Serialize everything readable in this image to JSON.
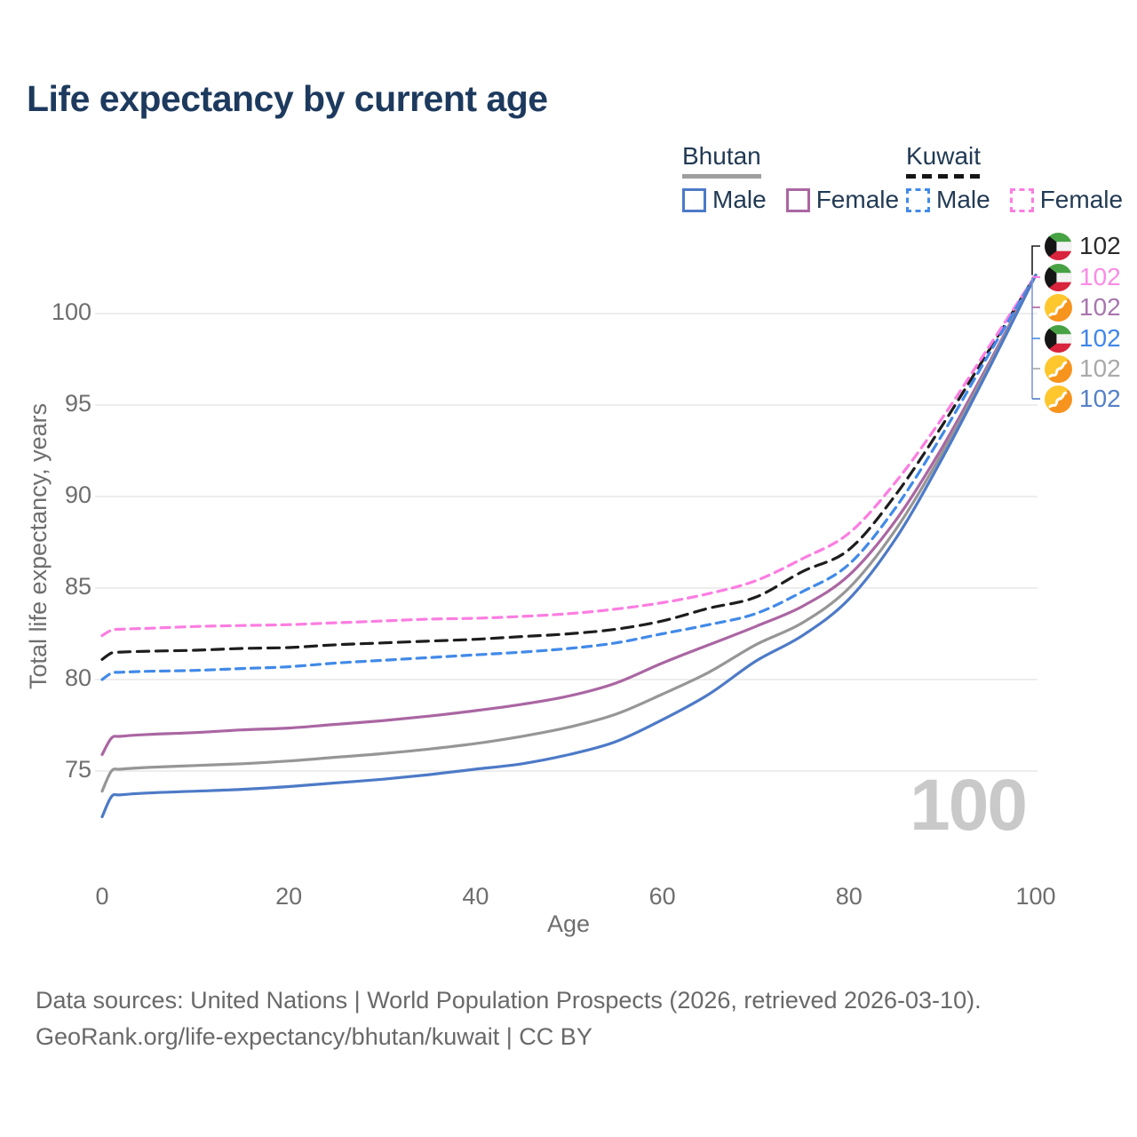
{
  "title": "Life expectancy by current age",
  "watermark": "100",
  "legend": {
    "groups": [
      {
        "label": "Bhutan",
        "underline_color": "#9e9e9e",
        "underline_dashed": false,
        "items": [
          {
            "label": "Male",
            "color": "#4d7ac7",
            "dashed": false
          },
          {
            "label": "Female",
            "color": "#aa66a2",
            "dashed": false
          }
        ]
      },
      {
        "label": "Kuwait",
        "underline_color": "#151515",
        "underline_dashed": true,
        "items": [
          {
            "label": "Male",
            "color": "#418ae8",
            "dashed": true
          },
          {
            "label": "Female",
            "color": "#fb7de1",
            "dashed": true
          }
        ]
      }
    ]
  },
  "chart_data": {
    "type": "line",
    "xlabel": "Age",
    "ylabel": "Total life expectancy, years",
    "x_ticks": [
      0,
      20,
      40,
      60,
      80,
      100
    ],
    "y_ticks": [
      75,
      80,
      85,
      90,
      95,
      100
    ],
    "xlim": [
      0,
      100
    ],
    "ylim": [
      72,
      103
    ],
    "grid": "horizontal-only",
    "ages": [
      0,
      1,
      2,
      5,
      10,
      15,
      20,
      25,
      30,
      35,
      40,
      45,
      50,
      55,
      60,
      65,
      70,
      75,
      80,
      85,
      90,
      95,
      100
    ],
    "series": [
      {
        "id": "kuwait-all",
        "country": "Kuwait",
        "sex": "Both sexes",
        "color": "#1d1d1d",
        "dashed": true,
        "flag": "kuwait",
        "end_label": "102",
        "end_label_color": "#2b2b2b",
        "values": [
          81.1,
          81.45,
          81.5,
          81.55,
          81.6,
          81.7,
          81.75,
          81.9,
          82.0,
          82.1,
          82.2,
          82.35,
          82.5,
          82.75,
          83.2,
          83.9,
          84.5,
          85.9,
          87.1,
          90.1,
          93.9,
          98.0,
          102.1
        ]
      },
      {
        "id": "kuwait-female",
        "country": "Kuwait",
        "sex": "Female",
        "color": "#fb7de1",
        "dashed": true,
        "flag": "kuwait",
        "end_label": "102",
        "end_label_color": "#fb8ae6",
        "values": [
          82.4,
          82.7,
          82.75,
          82.8,
          82.9,
          82.95,
          83.0,
          83.1,
          83.2,
          83.3,
          83.35,
          83.45,
          83.6,
          83.85,
          84.2,
          84.7,
          85.4,
          86.6,
          88.0,
          90.8,
          94.3,
          98.2,
          102.1
        ]
      },
      {
        "id": "bhutan-female",
        "country": "Bhutan",
        "sex": "Female",
        "color": "#aa66a2",
        "dashed": false,
        "flag": "bhutan",
        "end_label": "102",
        "end_label_color": "#a876ae",
        "values": [
          75.9,
          76.8,
          76.9,
          77.0,
          77.1,
          77.25,
          77.35,
          77.55,
          77.75,
          78.0,
          78.3,
          78.65,
          79.1,
          79.8,
          80.9,
          81.9,
          82.9,
          84.0,
          85.7,
          88.7,
          92.7,
          97.3,
          102.1
        ]
      },
      {
        "id": "kuwait-male",
        "country": "Kuwait",
        "sex": "Male",
        "color": "#418ae8",
        "dashed": true,
        "flag": "kuwait",
        "end_label": "102",
        "end_label_color": "#4186ea",
        "values": [
          80.0,
          80.35,
          80.4,
          80.45,
          80.5,
          80.6,
          80.7,
          80.9,
          81.05,
          81.2,
          81.35,
          81.5,
          81.7,
          82.0,
          82.5,
          83.0,
          83.6,
          84.8,
          86.3,
          89.4,
          93.4,
          97.8,
          102.1
        ]
      },
      {
        "id": "bhutan-all",
        "country": "Bhutan",
        "sex": "Both sexes",
        "color": "#969696",
        "dashed": false,
        "flag": "bhutan",
        "end_label": "102",
        "end_label_color": "#a9a9a9",
        "values": [
          73.9,
          75.0,
          75.1,
          75.2,
          75.3,
          75.4,
          75.55,
          75.75,
          75.95,
          76.2,
          76.5,
          76.9,
          77.4,
          78.1,
          79.2,
          80.4,
          81.9,
          83.1,
          85.0,
          88.2,
          92.4,
          97.15,
          102.1
        ]
      },
      {
        "id": "bhutan-male",
        "country": "Bhutan",
        "sex": "Male",
        "color": "#4d7ac7",
        "dashed": false,
        "flag": "bhutan",
        "end_label": "102",
        "end_label_color": "#5581c8",
        "values": [
          72.5,
          73.6,
          73.7,
          73.8,
          73.9,
          74.0,
          74.15,
          74.35,
          74.55,
          74.8,
          75.1,
          75.4,
          75.9,
          76.6,
          77.8,
          79.2,
          81.0,
          82.4,
          84.4,
          87.7,
          92.1,
          97.0,
          102.1
        ]
      }
    ]
  },
  "footer": {
    "line1": "Data sources: United Nations | World Population Prospects (2026, retrieved 2026-03-10).",
    "line2": "GeoRank.org/life-expectancy/bhutan/kuwait | CC BY"
  }
}
